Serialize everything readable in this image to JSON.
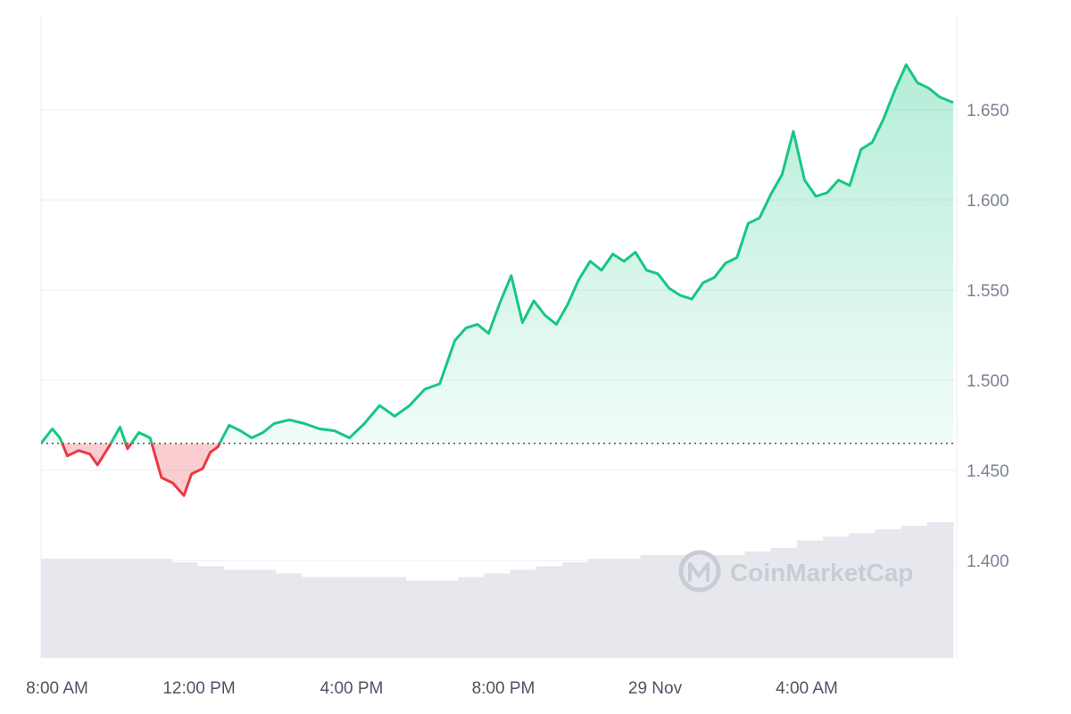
{
  "watermark": {
    "text": "CoinMarketCap",
    "icon": "coinmarketcap-logo-icon"
  },
  "colors": {
    "up": "#16c784",
    "down": "#ea3943",
    "up_fill": "#16c784",
    "down_fill": "#ea3943",
    "grid": "#eceef2",
    "volume": "#e6e8ed",
    "baseline": "#4d5465"
  },
  "chart_data": {
    "type": "area",
    "title": "",
    "xlabel": "",
    "ylabel": "",
    "x_ticks": [
      "8:00 AM",
      "12:00 PM",
      "4:00 PM",
      "8:00 PM",
      "29 Nov",
      "4:00 AM"
    ],
    "y_ticks": [
      "1.400",
      "1.450",
      "1.500",
      "1.550",
      "1.600",
      "1.650"
    ],
    "ylim": [
      1.35,
      1.702
    ],
    "xlim_hours": [
      8.0,
      32.25
    ],
    "baseline_value": 1.465,
    "grid": true,
    "y_axis_side": "right",
    "series": [
      {
        "x": [
          8.0,
          8.3,
          8.5,
          8.7,
          9.0,
          9.3,
          9.5,
          9.8,
          10.1,
          10.3,
          10.6,
          10.9,
          11.2,
          11.5,
          11.8,
          12.0,
          12.3,
          12.5,
          12.7,
          13.0,
          13.3,
          13.6,
          13.9,
          14.2,
          14.6,
          15.0,
          15.4,
          15.8,
          16.2,
          16.6,
          17.0,
          17.4,
          17.8,
          18.2,
          18.6,
          19.0,
          19.3,
          19.6,
          19.9,
          20.2,
          20.5,
          20.8,
          21.1,
          21.4,
          21.7,
          22.0,
          22.3,
          22.6,
          22.9,
          23.2,
          23.5,
          23.8,
          24.1,
          24.4,
          24.7,
          25.0,
          25.3,
          25.6,
          25.9,
          26.2,
          26.5,
          26.8,
          27.1,
          27.4,
          27.7,
          28.0,
          28.3,
          28.6,
          28.9,
          29.2,
          29.5,
          29.8,
          30.1,
          30.4,
          30.7,
          31.0,
          31.3,
          31.6,
          31.9,
          32.25
        ],
        "values": [
          1.465,
          1.473,
          1.468,
          1.458,
          1.461,
          1.459,
          1.453,
          1.463,
          1.474,
          1.462,
          1.471,
          1.468,
          1.446,
          1.443,
          1.436,
          1.448,
          1.451,
          1.46,
          1.463,
          1.475,
          1.472,
          1.468,
          1.471,
          1.476,
          1.478,
          1.476,
          1.473,
          1.472,
          1.468,
          1.476,
          1.486,
          1.48,
          1.486,
          1.495,
          1.498,
          1.522,
          1.529,
          1.531,
          1.526,
          1.543,
          1.558,
          1.532,
          1.544,
          1.536,
          1.531,
          1.542,
          1.556,
          1.566,
          1.561,
          1.57,
          1.566,
          1.571,
          1.561,
          1.559,
          1.551,
          1.547,
          1.545,
          1.554,
          1.557,
          1.565,
          1.568,
          1.587,
          1.59,
          1.603,
          1.614,
          1.638,
          1.611,
          1.602,
          1.604,
          1.611,
          1.608,
          1.628,
          1.632,
          1.645,
          1.661,
          1.675,
          1.665,
          1.662,
          1.657,
          1.654
        ]
      }
    ],
    "volume": [
      0.27,
      0.27,
      0.27,
      0.27,
      0.27,
      0.26,
      0.25,
      0.24,
      0.24,
      0.23,
      0.22,
      0.22,
      0.22,
      0.22,
      0.21,
      0.21,
      0.22,
      0.23,
      0.24,
      0.25,
      0.26,
      0.27,
      0.27,
      0.28,
      0.28,
      0.28,
      0.28,
      0.29,
      0.3,
      0.32,
      0.33,
      0.34,
      0.35,
      0.36,
      0.37
    ]
  }
}
